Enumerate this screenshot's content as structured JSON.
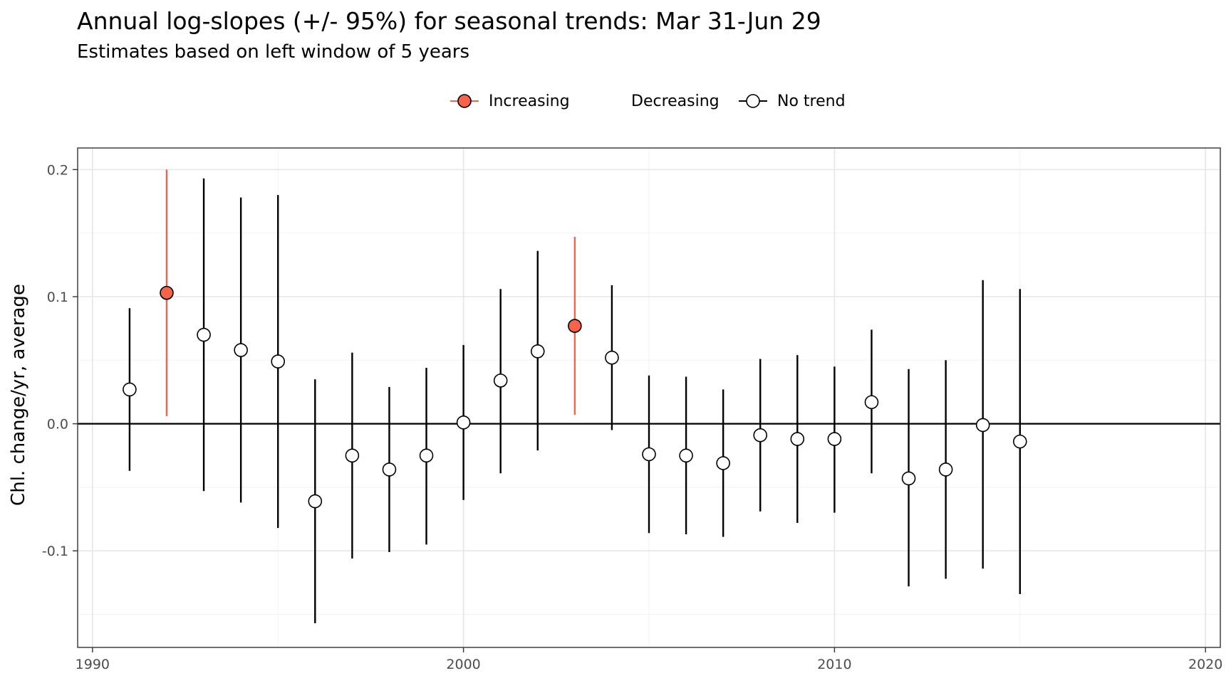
{
  "chart_data": {
    "type": "scatter",
    "title": "Annual log-slopes (+/- 95%) for seasonal trends: Mar 31-Jun 29",
    "subtitle": "Estimates based on left window of 5 years",
    "ylabel": "Chl. change/yr, average",
    "xlabel": "",
    "xlim": [
      1989.6,
      2020.4
    ],
    "ylim": [
      -0.176,
      0.217
    ],
    "x_ticks": [
      1990,
      2000,
      2010,
      2020
    ],
    "y_ticks": [
      -0.1,
      0.0,
      0.1,
      0.2
    ],
    "y_tick_labels": [
      "-0.1",
      "0.0",
      "0.1",
      "0.2"
    ],
    "grid": true,
    "legend_position": "top",
    "legend": [
      {
        "name": "Increasing",
        "color": "#f4634a",
        "fill": "#f4634a"
      },
      {
        "name": "Decreasing",
        "color": "#4a90d9",
        "fill": "#4a90d9"
      },
      {
        "name": "No trend",
        "color": "#000000",
        "fill": "#ffffff"
      }
    ],
    "points": [
      {
        "x": 1991,
        "y": 0.027,
        "lower": -0.037,
        "upper": 0.091,
        "trend": "No trend"
      },
      {
        "x": 1992,
        "y": 0.103,
        "lower": 0.006,
        "upper": 0.2,
        "trend": "Increasing"
      },
      {
        "x": 1993,
        "y": 0.07,
        "lower": -0.053,
        "upper": 0.193,
        "trend": "No trend"
      },
      {
        "x": 1994,
        "y": 0.058,
        "lower": -0.062,
        "upper": 0.178,
        "trend": "No trend"
      },
      {
        "x": 1995,
        "y": 0.049,
        "lower": -0.082,
        "upper": 0.18,
        "trend": "No trend"
      },
      {
        "x": 1996,
        "y": -0.061,
        "lower": -0.157,
        "upper": 0.035,
        "trend": "No trend"
      },
      {
        "x": 1997,
        "y": -0.025,
        "lower": -0.106,
        "upper": 0.056,
        "trend": "No trend"
      },
      {
        "x": 1998,
        "y": -0.036,
        "lower": -0.101,
        "upper": 0.029,
        "trend": "No trend"
      },
      {
        "x": 1999,
        "y": -0.025,
        "lower": -0.095,
        "upper": 0.044,
        "trend": "No trend"
      },
      {
        "x": 2000,
        "y": 0.001,
        "lower": -0.06,
        "upper": 0.062,
        "trend": "No trend"
      },
      {
        "x": 2001,
        "y": 0.034,
        "lower": -0.039,
        "upper": 0.106,
        "trend": "No trend"
      },
      {
        "x": 2002,
        "y": 0.057,
        "lower": -0.021,
        "upper": 0.136,
        "trend": "No trend"
      },
      {
        "x": 2003,
        "y": 0.077,
        "lower": 0.007,
        "upper": 0.147,
        "trend": "Increasing"
      },
      {
        "x": 2004,
        "y": 0.052,
        "lower": -0.005,
        "upper": 0.109,
        "trend": "No trend"
      },
      {
        "x": 2005,
        "y": -0.024,
        "lower": -0.086,
        "upper": 0.038,
        "trend": "No trend"
      },
      {
        "x": 2006,
        "y": -0.025,
        "lower": -0.087,
        "upper": 0.037,
        "trend": "No trend"
      },
      {
        "x": 2007,
        "y": -0.031,
        "lower": -0.089,
        "upper": 0.027,
        "trend": "No trend"
      },
      {
        "x": 2008,
        "y": -0.009,
        "lower": -0.069,
        "upper": 0.051,
        "trend": "No trend"
      },
      {
        "x": 2009,
        "y": -0.012,
        "lower": -0.078,
        "upper": 0.054,
        "trend": "No trend"
      },
      {
        "x": 2010,
        "y": -0.012,
        "lower": -0.07,
        "upper": 0.045,
        "trend": "No trend"
      },
      {
        "x": 2011,
        "y": 0.017,
        "lower": -0.039,
        "upper": 0.074,
        "trend": "No trend"
      },
      {
        "x": 2012,
        "y": -0.043,
        "lower": -0.128,
        "upper": 0.043,
        "trend": "No trend"
      },
      {
        "x": 2013,
        "y": -0.036,
        "lower": -0.122,
        "upper": 0.05,
        "trend": "No trend"
      },
      {
        "x": 2014,
        "y": -0.001,
        "lower": -0.114,
        "upper": 0.113,
        "trend": "No trend"
      },
      {
        "x": 2015,
        "y": -0.014,
        "lower": -0.134,
        "upper": 0.106,
        "trend": "No trend"
      }
    ]
  }
}
